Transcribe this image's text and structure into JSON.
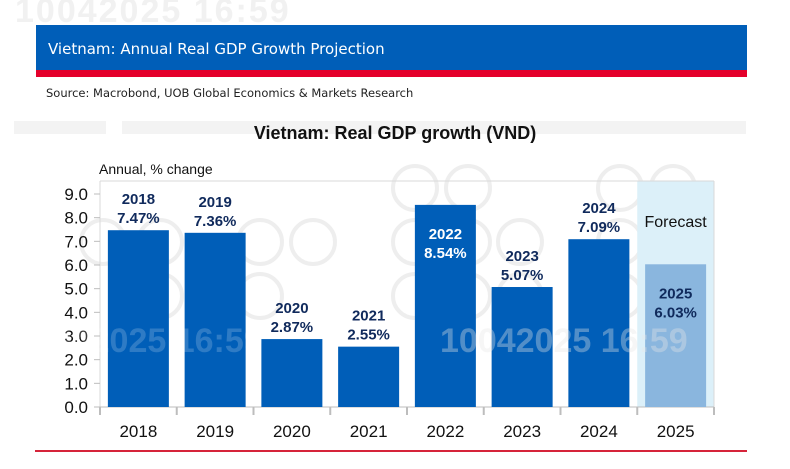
{
  "header": {
    "title": "Vietnam: Annual Real GDP Growth Projection",
    "source": "Source: Macrobond, UOB Global Economics & Markets Research"
  },
  "watermark": "10042025 16:59",
  "colors": {
    "header_blue": "#005eb8",
    "header_red": "#e4002b",
    "bar_actual": "#005eb8",
    "bar_forecast": "#8ab6de",
    "forecast_bg": "#dcf0f9",
    "label_dark": "#102a5c",
    "label_inside": "#ffffff"
  },
  "chart_data": {
    "type": "bar",
    "title": "Vietnam: Real GDP growth (VND)",
    "ylabel": "Annual, % change",
    "xlabel": "",
    "categories": [
      "2018",
      "2019",
      "2020",
      "2021",
      "2022",
      "2023",
      "2024",
      "2025"
    ],
    "values": [
      7.47,
      7.36,
      2.87,
      2.55,
      8.54,
      5.07,
      7.09,
      6.03
    ],
    "data_labels": [
      {
        "year": "2018",
        "value": "7.47%",
        "position": "above"
      },
      {
        "year": "2019",
        "value": "7.36%",
        "position": "above"
      },
      {
        "year": "2020",
        "value": "2.87%",
        "position": "above"
      },
      {
        "year": "2021",
        "value": "2.55%",
        "position": "above"
      },
      {
        "year": "2022",
        "value": "8.54%",
        "position": "inside"
      },
      {
        "year": "2023",
        "value": "5.07%",
        "position": "above"
      },
      {
        "year": "2024",
        "value": "7.09%",
        "position": "above"
      },
      {
        "year": "2025",
        "value": "6.03%",
        "position": "inside"
      }
    ],
    "forecast": {
      "categories": [
        "2025"
      ],
      "label": "Forecast"
    },
    "ylim": [
      0,
      9
    ],
    "yticks": [
      "0.0",
      "1.0",
      "2.0",
      "3.0",
      "4.0",
      "5.0",
      "6.0",
      "7.0",
      "8.0",
      "9.0"
    ],
    "grid": false,
    "legend": "none"
  }
}
